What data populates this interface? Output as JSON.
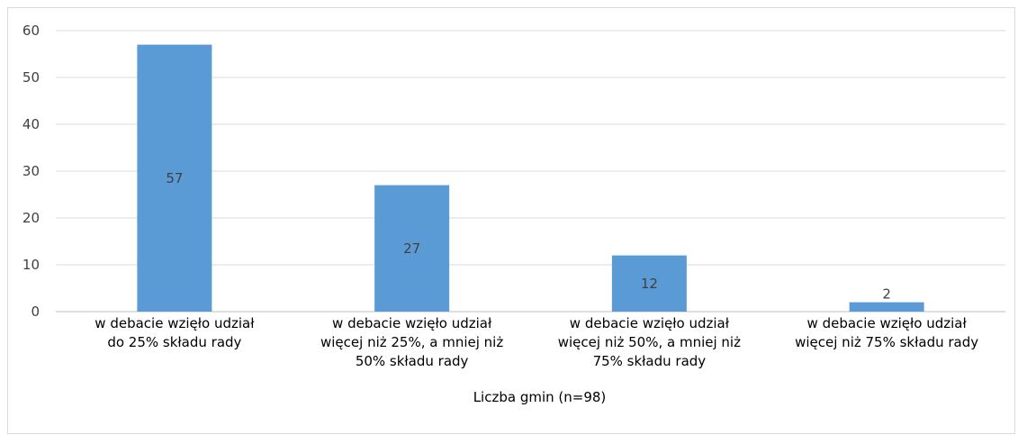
{
  "chart_data": {
    "type": "bar",
    "categories": [
      [
        "w debacie wzięło udział",
        "do 25% składu rady"
      ],
      [
        "w debacie wzięło udział",
        "więcej niż 25%, a mniej niż",
        "50% składu rady"
      ],
      [
        "w debacie wzięło udział",
        "więcej niż 50%, a mniej niż",
        "75% składu rady"
      ],
      [
        "w debacie wzięło udział",
        "więcej niż 75% składu rady"
      ]
    ],
    "values": [
      57,
      27,
      12,
      2
    ],
    "xlabel": "Liczba gmin (n=98)",
    "ylabel": "",
    "ylim": [
      0,
      60
    ],
    "yticks": [
      0,
      10,
      20,
      30,
      40,
      50,
      60
    ],
    "grid": true,
    "legend": "none",
    "colors": {
      "bar": "#5b9bd5",
      "grid": "#d9d9d9",
      "axis": "#bfbfbf",
      "tick_text": "#404040",
      "label_text": "#000000"
    }
  }
}
